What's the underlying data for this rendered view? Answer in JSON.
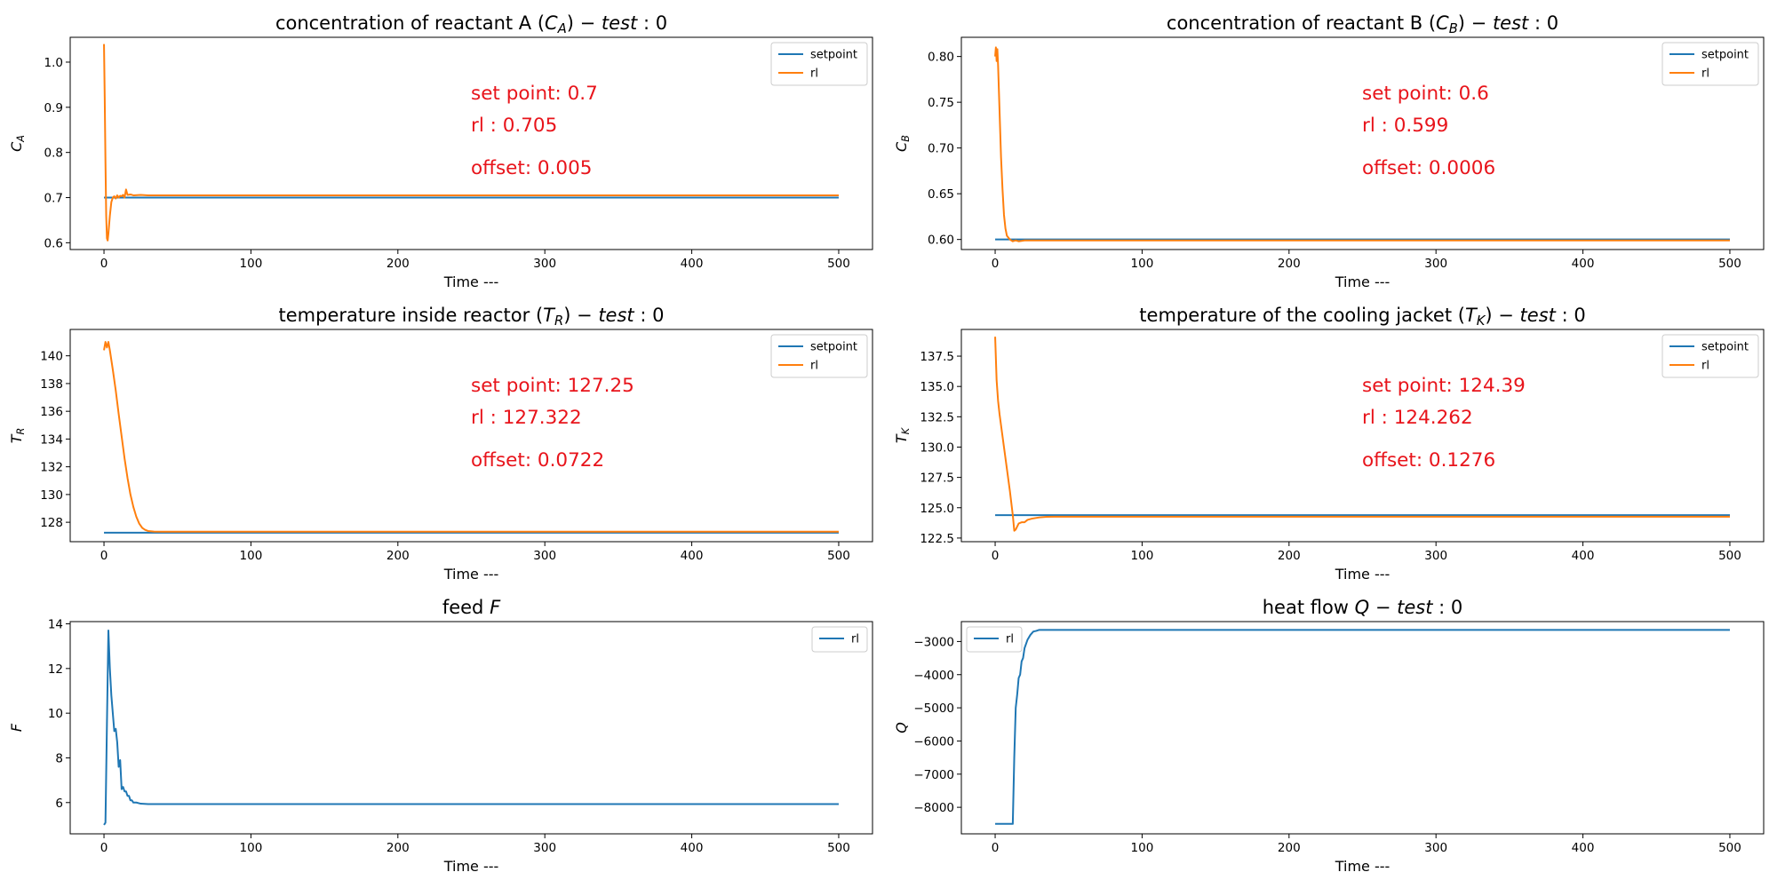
{
  "chart_data": [
    {
      "type": "line",
      "title": "concentration of reactant A (C_A) − test: 0",
      "title_parts": [
        {
          "text": "concentration of reactant A (",
          "style": "normal"
        },
        {
          "text": "C",
          "style": "italic"
        },
        {
          "text": "A",
          "style": "sub"
        },
        {
          "text": ") − ",
          "style": "normal"
        },
        {
          "text": "test",
          "style": "italic"
        },
        {
          "text": " : 0",
          "style": "normal"
        }
      ],
      "xlabel": "Time ---",
      "ylabel": "C_A",
      "ylabel_parts": [
        {
          "text": "C",
          "style": "italic"
        },
        {
          "text": "A",
          "style": "sub"
        }
      ],
      "xlim": [
        -23,
        523
      ],
      "ylim": [
        0.585,
        1.055
      ],
      "xticks": [
        0,
        100,
        200,
        300,
        400,
        500
      ],
      "yticks": [
        0.6,
        0.7,
        0.8,
        0.9,
        1.0
      ],
      "ytick_decimals": 1,
      "legend": "top-right",
      "annotations": [
        "set point: 0.7",
        "rl : 0.705",
        "offset: 0.005"
      ],
      "series": [
        {
          "name": "setpoint",
          "color": "#1f77b4",
          "x": [
            0,
            500
          ],
          "y": [
            0.7,
            0.7
          ]
        },
        {
          "name": "rl",
          "color": "#ff7f0e",
          "x": [
            0,
            0.5,
            1,
            1.5,
            2,
            2.5,
            3,
            4,
            5,
            6,
            7,
            8,
            9,
            10,
            11,
            12,
            13,
            14,
            15,
            16,
            18,
            20,
            25,
            30,
            40,
            500
          ],
          "y": [
            1.04,
            0.92,
            0.78,
            0.66,
            0.61,
            0.605,
            0.62,
            0.66,
            0.69,
            0.7,
            0.703,
            0.698,
            0.705,
            0.7,
            0.704,
            0.703,
            0.706,
            0.7,
            0.718,
            0.706,
            0.707,
            0.705,
            0.706,
            0.705,
            0.705,
            0.705
          ]
        }
      ]
    },
    {
      "type": "line",
      "title": "concentration of reactant B (C_B) − test: 0",
      "title_parts": [
        {
          "text": "concentration of reactant B (",
          "style": "normal"
        },
        {
          "text": "C",
          "style": "italic"
        },
        {
          "text": "B",
          "style": "sub"
        },
        {
          "text": ") − ",
          "style": "normal"
        },
        {
          "text": "test",
          "style": "italic"
        },
        {
          "text": " : 0",
          "style": "normal"
        }
      ],
      "xlabel": "Time ---",
      "ylabel": "C_B",
      "ylabel_parts": [
        {
          "text": "C",
          "style": "italic"
        },
        {
          "text": "B",
          "style": "sub"
        }
      ],
      "xlim": [
        -23,
        523
      ],
      "ylim": [
        0.589,
        0.821
      ],
      "xticks": [
        0,
        100,
        200,
        300,
        400,
        500
      ],
      "yticks": [
        0.6,
        0.65,
        0.7,
        0.75,
        0.8
      ],
      "ytick_decimals": 2,
      "legend": "top-right",
      "annotations": [
        "set point: 0.6",
        "rl : 0.599",
        "offset: 0.0006"
      ],
      "series": [
        {
          "name": "setpoint",
          "color": "#1f77b4",
          "x": [
            0,
            500
          ],
          "y": [
            0.6,
            0.6
          ]
        },
        {
          "name": "rl",
          "color": "#ff7f0e",
          "x": [
            0,
            0.5,
            1,
            1.5,
            2,
            3,
            4,
            5,
            6,
            7,
            8,
            10,
            12,
            14,
            16,
            20,
            30,
            500
          ],
          "y": [
            0.8,
            0.81,
            0.795,
            0.808,
            0.79,
            0.74,
            0.69,
            0.655,
            0.627,
            0.612,
            0.604,
            0.6,
            0.598,
            0.599,
            0.598,
            0.599,
            0.599,
            0.599
          ]
        }
      ]
    },
    {
      "type": "line",
      "title": "temperature inside reactor (T_R) − test: 0",
      "title_parts": [
        {
          "text": "temperature inside reactor (",
          "style": "normal"
        },
        {
          "text": "T",
          "style": "italic"
        },
        {
          "text": "R",
          "style": "sub"
        },
        {
          "text": ") − ",
          "style": "normal"
        },
        {
          "text": "test",
          "style": "italic"
        },
        {
          "text": " : 0",
          "style": "normal"
        }
      ],
      "xlabel": "Time ---",
      "ylabel": "T_R",
      "ylabel_parts": [
        {
          "text": "T",
          "style": "italic"
        },
        {
          "text": "R",
          "style": "sub"
        }
      ],
      "xlim": [
        -23,
        523
      ],
      "ylim": [
        126.6,
        141.9
      ],
      "xticks": [
        0,
        100,
        200,
        300,
        400,
        500
      ],
      "yticks": [
        128,
        130,
        132,
        134,
        136,
        138,
        140
      ],
      "ytick_decimals": 0,
      "legend": "top-right",
      "annotations": [
        "set point: 127.25",
        "rl : 127.322",
        "offset: 0.0722"
      ],
      "series": [
        {
          "name": "setpoint",
          "color": "#1f77b4",
          "x": [
            0,
            500
          ],
          "y": [
            127.25,
            127.25
          ]
        },
        {
          "name": "rl",
          "color": "#ff7f0e",
          "x": [
            0,
            1,
            2,
            3,
            4,
            6,
            8,
            10,
            12,
            14,
            16,
            18,
            20,
            22,
            24,
            26,
            28,
            30,
            34,
            40,
            500
          ],
          "y": [
            140.4,
            141.0,
            140.6,
            141.0,
            140.4,
            139.0,
            137.5,
            135.8,
            134.2,
            132.6,
            131.2,
            130.0,
            129.1,
            128.4,
            127.9,
            127.6,
            127.45,
            127.37,
            127.33,
            127.32,
            127.32
          ]
        }
      ]
    },
    {
      "type": "line",
      "title": "temperature of the cooling jacket (T_K) − test: 0",
      "title_parts": [
        {
          "text": "temperature of the cooling jacket (",
          "style": "normal"
        },
        {
          "text": "T",
          "style": "italic"
        },
        {
          "text": "K",
          "style": "sub"
        },
        {
          "text": ") − ",
          "style": "normal"
        },
        {
          "text": "test",
          "style": "italic"
        },
        {
          "text": " : 0",
          "style": "normal"
        }
      ],
      "xlabel": "Time ---",
      "ylabel": "T_K",
      "ylabel_parts": [
        {
          "text": "T",
          "style": "italic"
        },
        {
          "text": "K",
          "style": "sub"
        }
      ],
      "xlim": [
        -23,
        523
      ],
      "ylim": [
        122.2,
        139.7
      ],
      "xticks": [
        0,
        100,
        200,
        300,
        400,
        500
      ],
      "yticks": [
        122.5,
        125.0,
        127.5,
        130.0,
        132.5,
        135.0,
        137.5
      ],
      "ytick_decimals": 1,
      "legend": "top-right",
      "annotations": [
        "set point: 124.39",
        "rl : 124.262",
        "offset: 0.1276"
      ],
      "series": [
        {
          "name": "setpoint",
          "color": "#1f77b4",
          "x": [
            0,
            500
          ],
          "y": [
            124.39,
            124.39
          ]
        },
        {
          "name": "rl",
          "color": "#ff7f0e",
          "x": [
            0,
            1,
            2,
            3,
            4,
            6,
            8,
            10,
            12,
            13,
            14,
            16,
            18,
            20,
            22,
            25,
            30,
            35,
            40,
            500
          ],
          "y": [
            139.1,
            135.5,
            133.8,
            132.7,
            131.8,
            130.0,
            128.2,
            126.4,
            124.4,
            123.1,
            123.2,
            123.7,
            123.8,
            123.8,
            124.0,
            124.1,
            124.2,
            124.25,
            124.26,
            124.262
          ]
        }
      ]
    },
    {
      "type": "line",
      "title": "feed F",
      "title_parts": [
        {
          "text": "feed ",
          "style": "normal"
        },
        {
          "text": "F",
          "style": "italic"
        }
      ],
      "xlabel": "Time ---",
      "ylabel": "F",
      "ylabel_parts": [
        {
          "text": "F",
          "style": "italic"
        }
      ],
      "xlim": [
        -23,
        523
      ],
      "ylim": [
        4.6,
        14.1
      ],
      "xticks": [
        0,
        100,
        200,
        300,
        400,
        500
      ],
      "yticks": [
        6,
        8,
        10,
        12,
        14
      ],
      "ytick_decimals": 0,
      "legend": "top-right",
      "annotations": [],
      "series": [
        {
          "name": "rl",
          "color": "#1f77b4",
          "x": [
            0,
            1,
            2,
            3,
            4,
            5,
            6,
            7,
            8,
            9,
            10,
            11,
            12,
            13,
            14,
            15,
            16,
            17,
            18,
            19,
            20,
            22,
            25,
            30,
            500
          ],
          "y": [
            5.0,
            5.1,
            9.5,
            13.7,
            12.0,
            10.8,
            10.0,
            9.2,
            9.3,
            8.7,
            7.6,
            7.9,
            6.6,
            6.7,
            6.5,
            6.5,
            6.3,
            6.3,
            6.1,
            6.1,
            6.0,
            6.0,
            5.95,
            5.93,
            5.93
          ]
        }
      ]
    },
    {
      "type": "line",
      "title": "heat flow Q − test: 0",
      "title_parts": [
        {
          "text": "heat flow ",
          "style": "normal"
        },
        {
          "text": "Q",
          "style": "italic"
        },
        {
          "text": " − ",
          "style": "normal"
        },
        {
          "text": "test",
          "style": "italic"
        },
        {
          "text": " : 0",
          "style": "normal"
        }
      ],
      "xlabel": "Time ---",
      "ylabel": "Q",
      "ylabel_parts": [
        {
          "text": "Q",
          "style": "italic"
        }
      ],
      "xlim": [
        -23,
        523
      ],
      "ylim": [
        -8800,
        -2400
      ],
      "xticks": [
        0,
        100,
        200,
        300,
        400,
        500
      ],
      "yticks": [
        -8000,
        -7000,
        -6000,
        -5000,
        -4000,
        -3000
      ],
      "ytick_decimals": 0,
      "legend": "top-left",
      "annotations": [],
      "series": [
        {
          "name": "rl",
          "color": "#1f77b4",
          "x": [
            0,
            12,
            13,
            14,
            15,
            16,
            17,
            18,
            19,
            20,
            22,
            24,
            26,
            28,
            30,
            35,
            500
          ],
          "y": [
            -8500,
            -8500,
            -6500,
            -5000,
            -4600,
            -4100,
            -4000,
            -3600,
            -3500,
            -3200,
            -2950,
            -2800,
            -2700,
            -2680,
            -2650,
            -2650,
            -2650
          ]
        }
      ]
    }
  ]
}
